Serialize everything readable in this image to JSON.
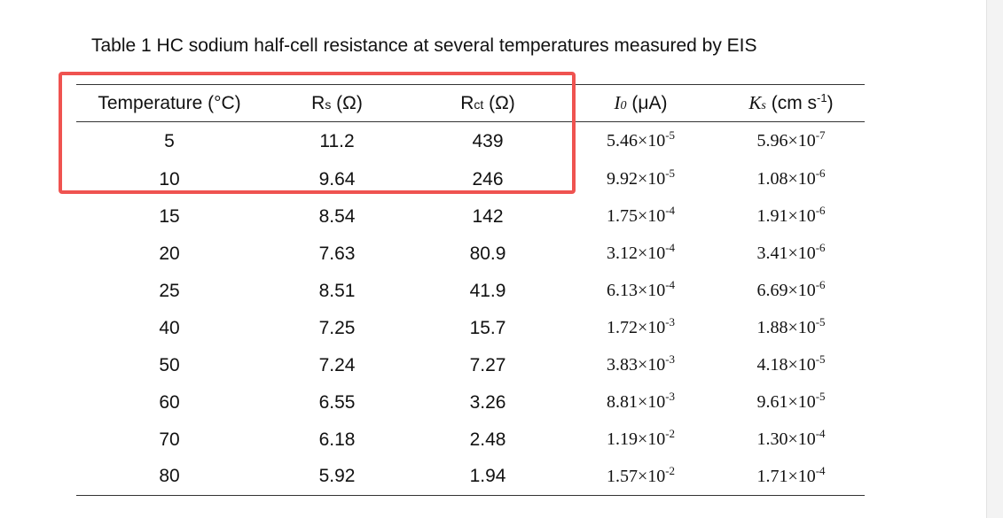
{
  "caption": "Table 1 HC sodium half-cell resistance at several temperatures measured by EIS",
  "header": {
    "temperature": "Temperature (°C)",
    "rs_main": "R",
    "rs_sub": "s",
    "rs_unit": " (Ω)",
    "rct_main": "R",
    "rct_sub": "ct",
    "rct_unit": " (Ω)",
    "i0_main": "I",
    "i0_sub": "0",
    "i0_unit": " (μA)",
    "ks_main": "K",
    "ks_sub": "s",
    "ks_unit": " (cm s",
    "ks_exp": "-1",
    "ks_close": ")"
  },
  "highlight": {
    "color": "#ef5350",
    "rows_covered": [
      "5",
      "10"
    ],
    "columns_covered": [
      "Temperature (°C)",
      "Rs (Ω)",
      "Rct (Ω)"
    ]
  },
  "rows": [
    {
      "temperature": "5",
      "rs": "11.2",
      "rct": "439",
      "i0_mant": "5.46×10",
      "i0_exp": "-5",
      "ks_mant": "5.96×10",
      "ks_exp": "-7"
    },
    {
      "temperature": "10",
      "rs": "9.64",
      "rct": "246",
      "i0_mant": "9.92×10",
      "i0_exp": "-5",
      "ks_mant": "1.08×10",
      "ks_exp": "-6"
    },
    {
      "temperature": "15",
      "rs": "8.54",
      "rct": "142",
      "i0_mant": "1.75×10",
      "i0_exp": "-4",
      "ks_mant": "1.91×10",
      "ks_exp": "-6"
    },
    {
      "temperature": "20",
      "rs": "7.63",
      "rct": "80.9",
      "i0_mant": "3.12×10",
      "i0_exp": "-4",
      "ks_mant": "3.41×10",
      "ks_exp": "-6"
    },
    {
      "temperature": "25",
      "rs": "8.51",
      "rct": "41.9",
      "i0_mant": "6.13×10",
      "i0_exp": "-4",
      "ks_mant": "6.69×10",
      "ks_exp": "-6"
    },
    {
      "temperature": "40",
      "rs": "7.25",
      "rct": "15.7",
      "i0_mant": "1.72×10",
      "i0_exp": "-3",
      "ks_mant": "1.88×10",
      "ks_exp": "-5"
    },
    {
      "temperature": "50",
      "rs": "7.24",
      "rct": "7.27",
      "i0_mant": "3.83×10",
      "i0_exp": "-3",
      "ks_mant": "4.18×10",
      "ks_exp": "-5"
    },
    {
      "temperature": "60",
      "rs": "6.55",
      "rct": "3.26",
      "i0_mant": "8.81×10",
      "i0_exp": "-3",
      "ks_mant": "9.61×10",
      "ks_exp": "-5"
    },
    {
      "temperature": "70",
      "rs": "6.18",
      "rct": "2.48",
      "i0_mant": "1.19×10",
      "i0_exp": "-2",
      "ks_mant": "1.30×10",
      "ks_exp": "-4"
    },
    {
      "temperature": "80",
      "rs": "5.92",
      "rct": "1.94",
      "i0_mant": "1.57×10",
      "i0_exp": "-2",
      "ks_mant": "1.71×10",
      "ks_exp": "-4"
    }
  ]
}
